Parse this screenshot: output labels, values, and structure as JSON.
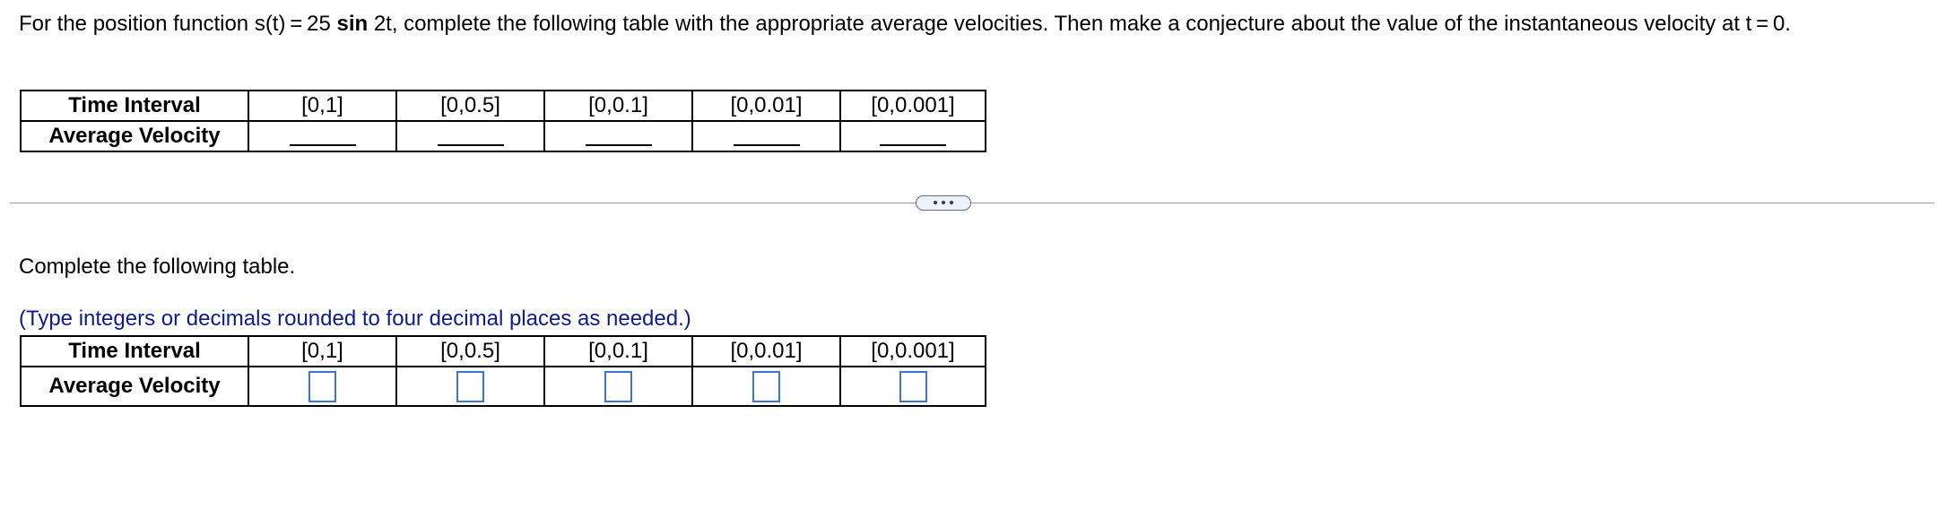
{
  "question": {
    "prefix": "For the position function s(t) = 25 ",
    "sin": "sin",
    "suffix": " 2t, complete the following table with the appropriate average velocities. Then make a conjecture about the value of the instantaneous velocity at t = 0."
  },
  "table_header": {
    "row1_label": "Time Interval",
    "row2_label": "Average Velocity",
    "intervals": [
      "[0,1]",
      "[0,0.5]",
      "[0,0.1]",
      "[0,0.01]",
      "[0,0.001]"
    ]
  },
  "more_button": {
    "icon": "ellipsis-icon"
  },
  "answer_section": {
    "instruction": "Complete the following table.",
    "hint": "(Type integers or decimals rounded to four decimal places as needed.)",
    "row1_label": "Time Interval",
    "row2_label": "Average Velocity",
    "intervals": [
      "[0,1]",
      "[0,0.5]",
      "[0,0.1]",
      "[0,0.01]",
      "[0,0.001]"
    ],
    "answers": [
      "",
      "",
      "",
      "",
      ""
    ]
  },
  "colors": {
    "hint_text": "#0e1b8f",
    "input_border": "#3f72d6",
    "divider": "#9a9a9a"
  }
}
